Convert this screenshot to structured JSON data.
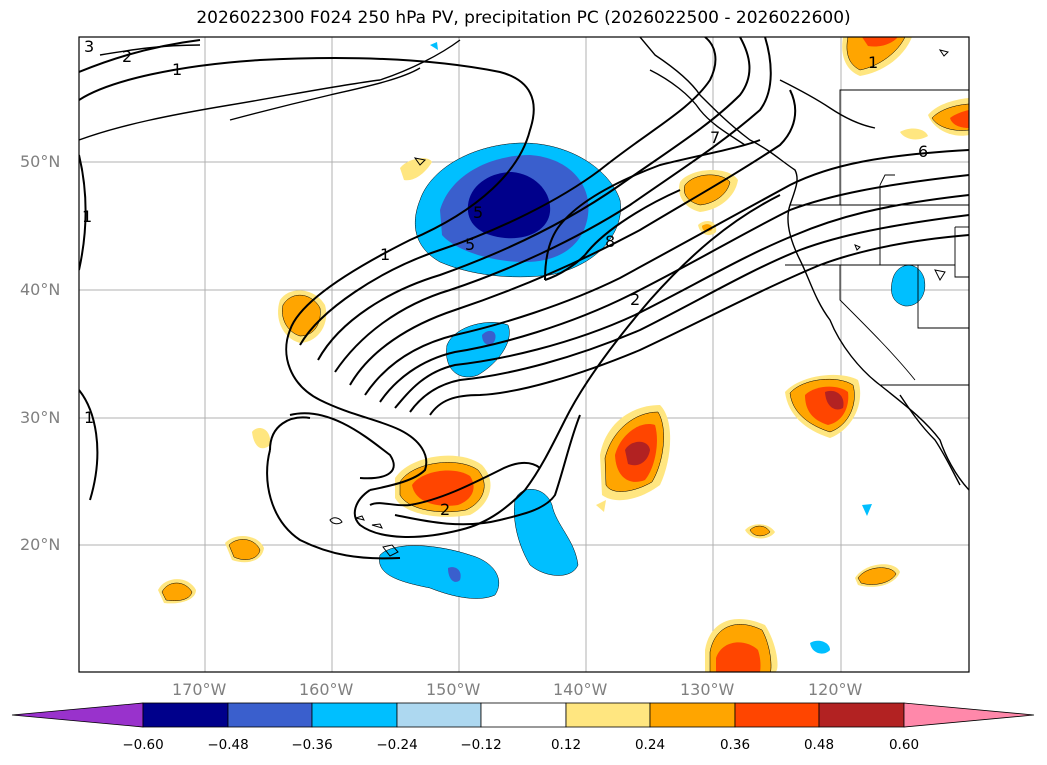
{
  "title": "2026022300 F024 250 hPa PV, precipitation PC (2026022500 - 2026022600)",
  "lat_labels": [
    "50°N",
    "40°N",
    "30°N",
    "20°N"
  ],
  "lon_labels": [
    "170°W",
    "160°W",
    "150°W",
    "140°W",
    "130°W",
    "120°W"
  ],
  "contour_labels": [
    "3",
    "2",
    "1",
    "1",
    "1",
    "1",
    "5",
    "5",
    "7",
    "6",
    "8",
    "2",
    "2",
    "1"
  ],
  "colorbar": {
    "ticks": [
      "−0.60",
      "−0.48",
      "−0.36",
      "−0.24",
      "−0.12",
      "0.12",
      "0.24",
      "0.36",
      "0.48",
      "0.60"
    ],
    "colors": [
      "#9932cc",
      "#00008b",
      "#3a5fcd",
      "#00bfff",
      "#add8f0",
      "#ffffff",
      "#ffe680",
      "#ffa500",
      "#ff4500",
      "#b22222",
      "#ff88aa"
    ]
  }
}
